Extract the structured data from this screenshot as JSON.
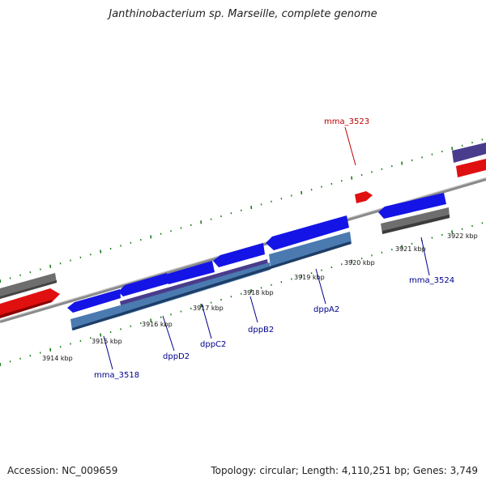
{
  "title": "Janthinobacterium sp. Marseille, complete genome",
  "footer": {
    "accession": "Accession: NC_009659",
    "summary": "Topology: circular; Length: 4,110,251 bp; Genes: 3,749"
  },
  "colors": {
    "backbone": "#8c8c8c",
    "tick": "#1a7a1a",
    "forward_gene": "#e01010",
    "reverse_gene": "#1010e0",
    "cds_gray": "#6a6a6a",
    "operon_steel": "#4a7ab0",
    "operon_purple": "#4a3c8c",
    "label_forward": "#c00000",
    "label_reverse": "#00008b"
  },
  "scale": {
    "ticks": [
      "3914 kbp",
      "3915 kbp",
      "3916 kbp",
      "3917 kbp",
      "3918 kbp",
      "3919 kbp",
      "3920 kbp",
      "3921 kbp",
      "3922 kbp"
    ]
  },
  "genes": {
    "mma_3523": "mma_3523",
    "mma_3518": "mma_3518",
    "dppD2": "dppD2",
    "dppC2": "dppC2",
    "dppB2": "dppB2",
    "dppA2": "dppA2",
    "mma_3524": "mma_3524"
  }
}
